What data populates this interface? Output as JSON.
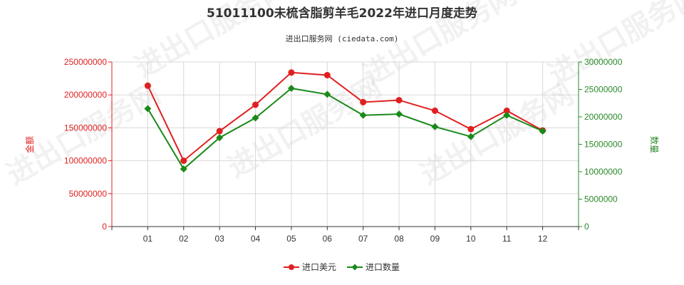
{
  "chart_data": {
    "type": "line",
    "title": "51011100未梳含脂剪羊毛2022年进口月度走势",
    "subtitle": "进出口服务网 (ciedata.com)",
    "categories": [
      "01",
      "02",
      "03",
      "04",
      "05",
      "06",
      "07",
      "08",
      "09",
      "10",
      "11",
      "12"
    ],
    "y_left": {
      "label": "金额",
      "ylim": [
        0,
        250000000
      ],
      "ticks": [
        "0",
        "50000000",
        "100000000",
        "150000000",
        "200000000",
        "250000000"
      ],
      "color": "#e02020"
    },
    "y_right": {
      "label": "数量",
      "ylim": [
        0,
        30000000
      ],
      "ticks": [
        "0",
        "5000000",
        "10000000",
        "15000000",
        "20000000",
        "25000000",
        "30000000"
      ],
      "color": "#2a8a2a"
    },
    "series": [
      {
        "name": "进口美元",
        "axis": "left",
        "color": "#e02020",
        "values": [
          214000000,
          100000000,
          145000000,
          185000000,
          234000000,
          230000000,
          189000000,
          192000000,
          176000000,
          148000000,
          176000000,
          146000000
        ]
      },
      {
        "name": "进口数量",
        "axis": "right",
        "color": "#1a8a1a",
        "values": [
          21500000,
          10500000,
          16200000,
          19800000,
          25200000,
          24100000,
          20300000,
          20500000,
          18200000,
          16400000,
          20300000,
          17400000
        ]
      }
    ],
    "grid": true,
    "legend": "bottom-center",
    "watermark": "进出口服务网"
  }
}
